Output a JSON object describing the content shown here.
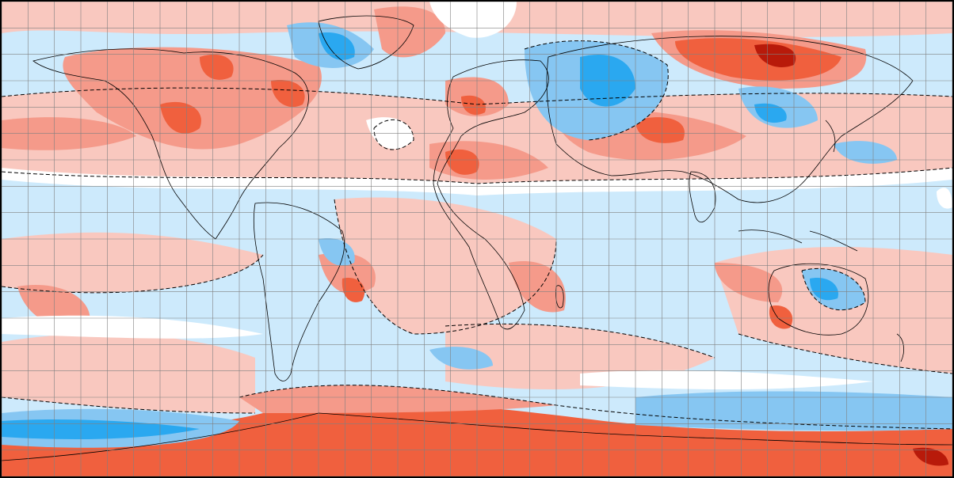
{
  "map": {
    "projection": "equirectangular",
    "grid": {
      "lon_step_deg": 10,
      "lat_step_deg": 10,
      "color": "#808080"
    },
    "contour_line_style": "dashed",
    "colors": {
      "strong_cold": "#0a78d8",
      "cold": "#2aa8f0",
      "moderate_cold": "#86c6f2",
      "mild_cold": "#cdeafc",
      "neutral": "#ffffff",
      "mild_warm": "#f9c8bf",
      "moderate_warm": "#f59a8a",
      "warm": "#f0603e",
      "strong_warm": "#b81a0a",
      "coast": "#000000"
    }
  }
}
